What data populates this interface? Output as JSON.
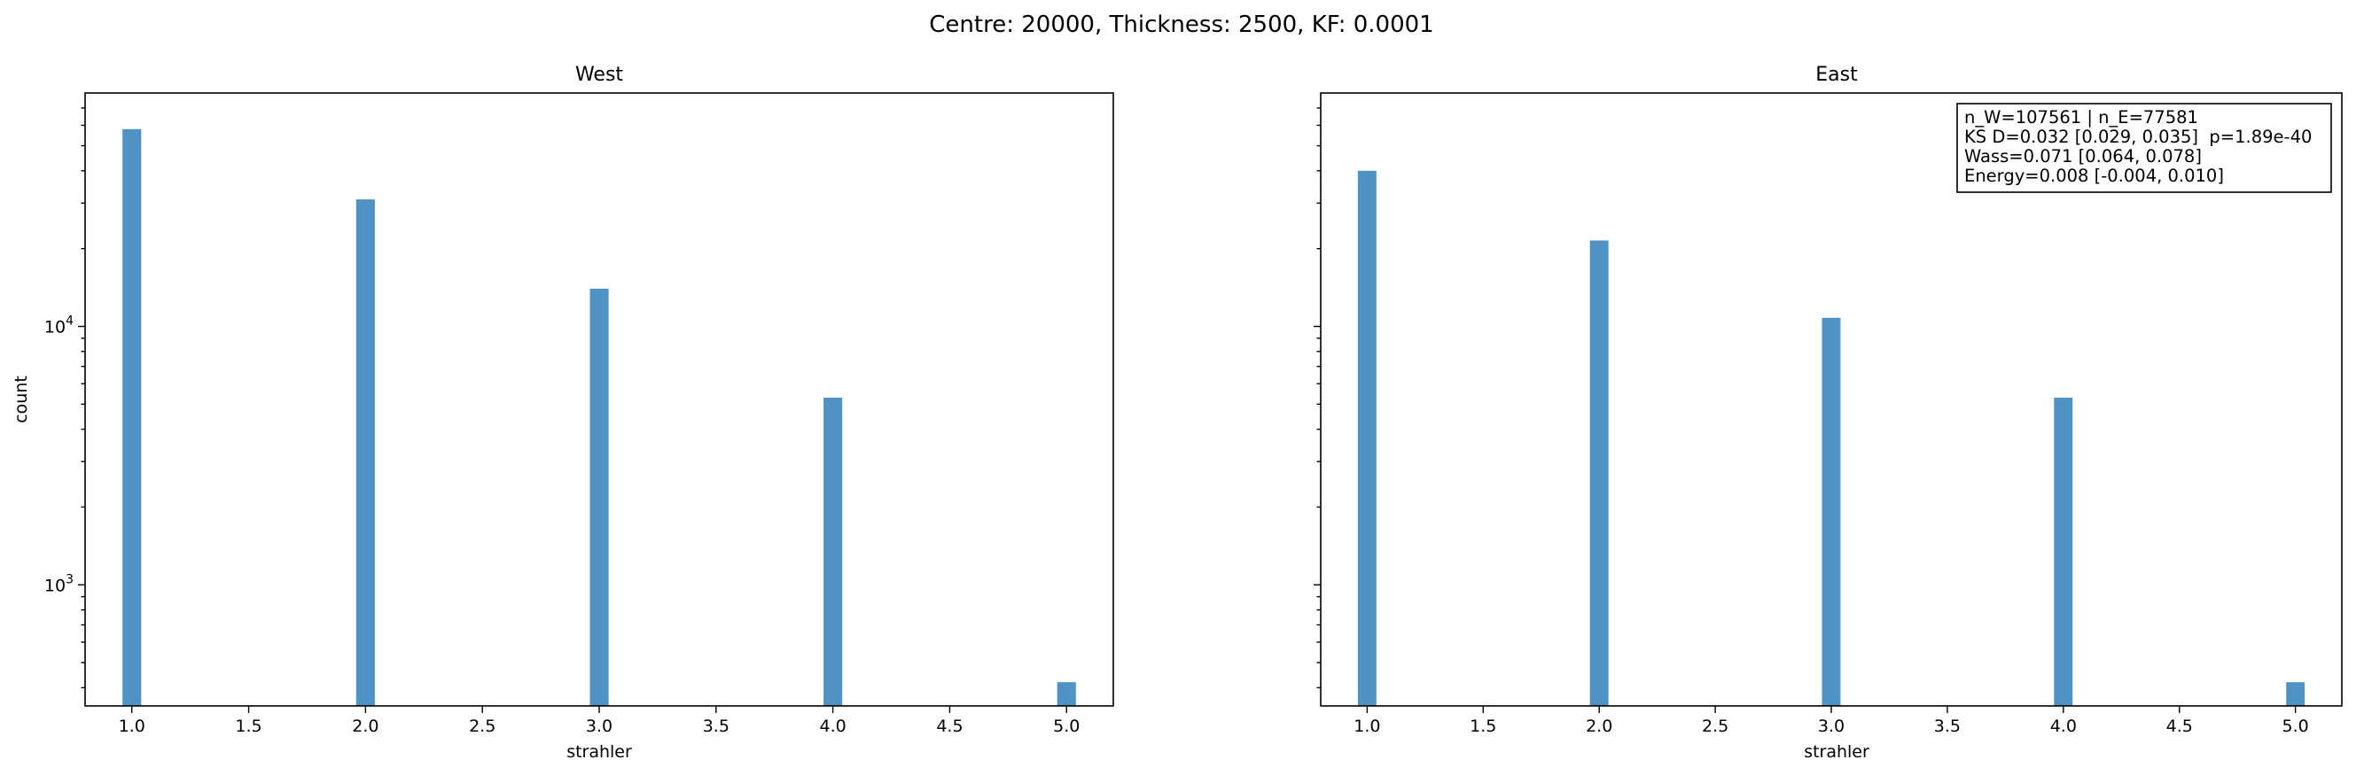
{
  "figure_title": "Centre: 20000, Thickness: 2500, KF: 0.0001",
  "colors": {
    "bar": "#4f92c4",
    "axes": "#000000",
    "background": "#ffffff"
  },
  "chart_data": [
    {
      "type": "bar",
      "title": "West",
      "xlabel": "strahler",
      "ylabel": "count",
      "x": [
        1,
        2,
        3,
        4,
        5
      ],
      "values": [
        58000,
        31000,
        14000,
        5300,
        420
      ],
      "bar_width": 0.08,
      "xlim": [
        0.8,
        5.2
      ],
      "ylim": [
        340,
        80000
      ],
      "yscale": "log",
      "xticks": [
        "1.0",
        "1.5",
        "2.0",
        "2.5",
        "3.0",
        "3.5",
        "4.0",
        "4.5",
        "5.0"
      ],
      "yticks": [
        {
          "value": 1000,
          "base": "10",
          "exp": "3"
        },
        {
          "value": 10000,
          "base": "10",
          "exp": "4"
        }
      ],
      "grid": false
    },
    {
      "type": "bar",
      "title": "East",
      "xlabel": "strahler",
      "ylabel": "",
      "x": [
        1,
        2,
        3,
        4,
        5
      ],
      "values": [
        40000,
        21500,
        10800,
        5300,
        420
      ],
      "bar_width": 0.08,
      "xlim": [
        0.8,
        5.2
      ],
      "ylim": [
        340,
        80000
      ],
      "yscale": "log",
      "sharey": true,
      "xticks": [
        "1.0",
        "1.5",
        "2.0",
        "2.5",
        "3.0",
        "3.5",
        "4.0",
        "4.5",
        "5.0"
      ],
      "grid": false,
      "annotation": {
        "placement": "top-right",
        "lines": [
          "n_W=107561 | n_E=77581",
          "KS D=0.032 [0.029, 0.035]  p=1.89e-40",
          "Wass=0.071 [0.064, 0.078]",
          "Energy=0.008 [-0.004, 0.010]"
        ]
      }
    }
  ]
}
